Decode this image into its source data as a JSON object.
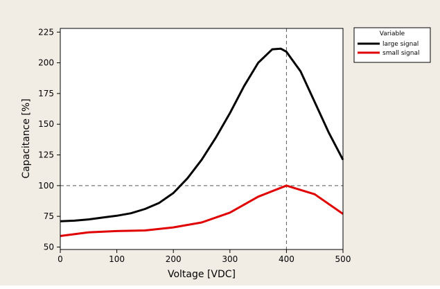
{
  "colors": {
    "background": "#f1ede4",
    "plot_background": "#ffffff",
    "large_signal": "#000000",
    "small_signal": "#e00000",
    "reference_line": "#555555"
  },
  "chart_data": {
    "type": "line",
    "title": "",
    "xlabel": "Voltage [VDC]",
    "ylabel": "Capacitance [%]",
    "xlim": [
      0,
      500
    ],
    "ylim": [
      48,
      228
    ],
    "xticks": [
      0,
      100,
      200,
      300,
      400,
      500
    ],
    "yticks": [
      50,
      75,
      100,
      125,
      150,
      175,
      200,
      225
    ],
    "grid": false,
    "legend": {
      "title": "Variable",
      "placement": "right"
    },
    "reference_lines": {
      "horizontal_y": 100,
      "vertical_x": 400
    },
    "series": [
      {
        "name": "large signal",
        "color": "#000000",
        "x": [
          0,
          25,
          50,
          75,
          100,
          125,
          150,
          175,
          200,
          225,
          250,
          275,
          300,
          325,
          350,
          375,
          390,
          400,
          425,
          450,
          475,
          500
        ],
        "y": [
          71,
          71.5,
          72.5,
          74,
          75.5,
          77.5,
          81,
          86,
          94,
          106,
          121,
          139,
          159,
          181,
          200,
          211,
          211.5,
          209,
          193,
          168,
          143,
          121
        ]
      },
      {
        "name": "small signal",
        "color": "#e00000",
        "x": [
          0,
          50,
          100,
          150,
          200,
          250,
          300,
          350,
          400,
          450,
          500
        ],
        "y": [
          59,
          62,
          63,
          63.5,
          66,
          70,
          78,
          91,
          100,
          93,
          77
        ]
      }
    ]
  }
}
